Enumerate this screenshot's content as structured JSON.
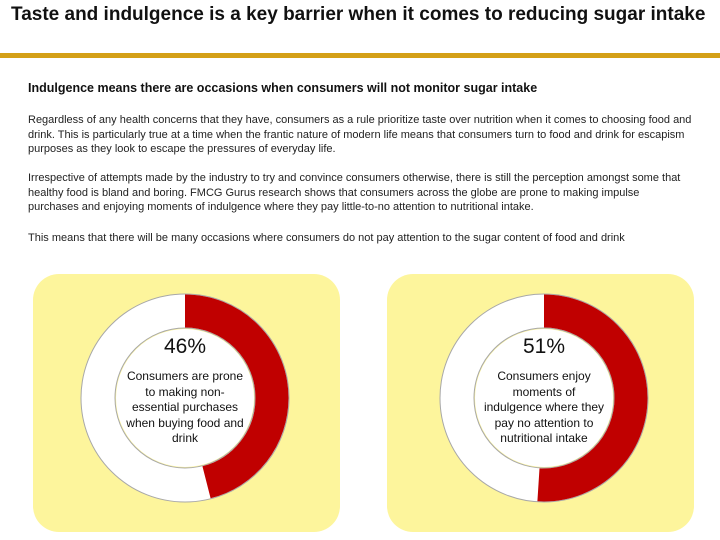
{
  "slide": {
    "title": "Taste and indulgence is a key barrier when it comes to reducing sugar intake",
    "subtitle": "Indulgence means there are occasions when consumers will not monitor sugar intake",
    "paragraphs": [
      "Regardless of any health concerns that they have, consumers as a rule prioritize taste over nutrition when it comes to choosing food and drink. This is particularly true at a time when the frantic nature of modern life means that consumers turn to food and drink for escapism purposes as they look to escape the pressures of everyday life.",
      "Irrespective of attempts made by the industry to try and convince consumers otherwise, there is still the perception amongst some that healthy food is bland and boring. FMCG Gurus research shows that consumers across the globe are prone to making impulse purchases and enjoying moments of indulgence where they pay little-to-no attention to nutritional intake.",
      "This means that there will be many occasions where consumers do not pay attention to the sugar content of food and drink"
    ]
  },
  "stats": [
    {
      "value_label": "46%",
      "value": 46,
      "description": "Consumers are prone to making non-essential purchases when buying food and drink"
    },
    {
      "value_label": "51%",
      "value": 51,
      "description": "Consumers enjoy moments of indulgence where they pay no attention to nutritional intake"
    }
  ],
  "colors": {
    "accent_rule": "#d4a017",
    "donut_fill": "#c00000",
    "donut_track": "#ffffff",
    "panel_bg": "#fdf59c"
  }
}
